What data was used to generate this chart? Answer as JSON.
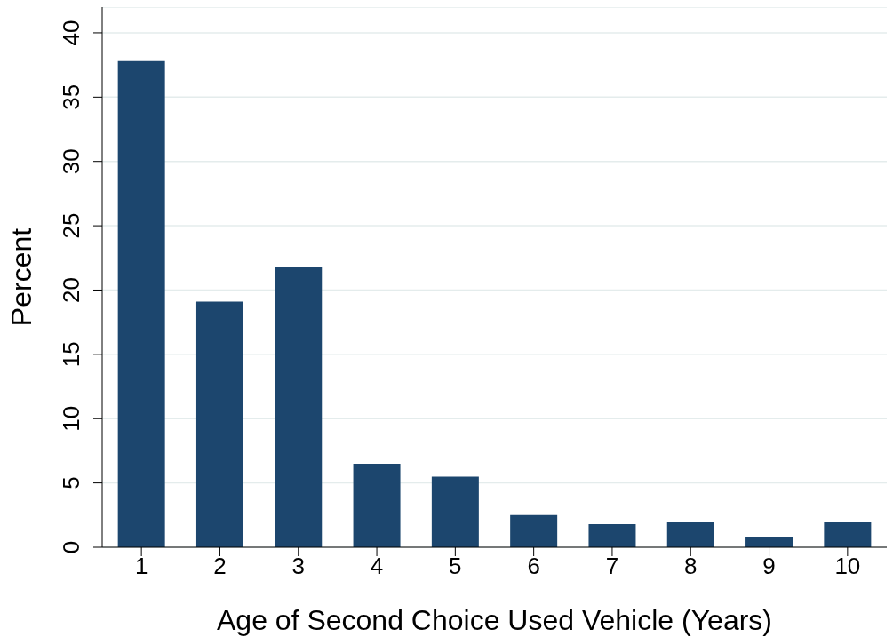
{
  "chart_data": {
    "type": "bar",
    "xlabel": "Age of Second Choice Used Vehicle (Years)",
    "ylabel": "Percent",
    "categories": [
      "1",
      "2",
      "3",
      "4",
      "5",
      "6",
      "7",
      "8",
      "9",
      "10"
    ],
    "values": [
      37.8,
      19.1,
      21.8,
      6.5,
      5.5,
      2.5,
      1.8,
      2.0,
      0.8,
      2.0
    ],
    "color": "#1c466e",
    "ylim": [
      0,
      42
    ],
    "yticks": [
      0,
      5,
      10,
      15,
      20,
      25,
      30,
      35,
      40
    ],
    "grid": "y"
  }
}
